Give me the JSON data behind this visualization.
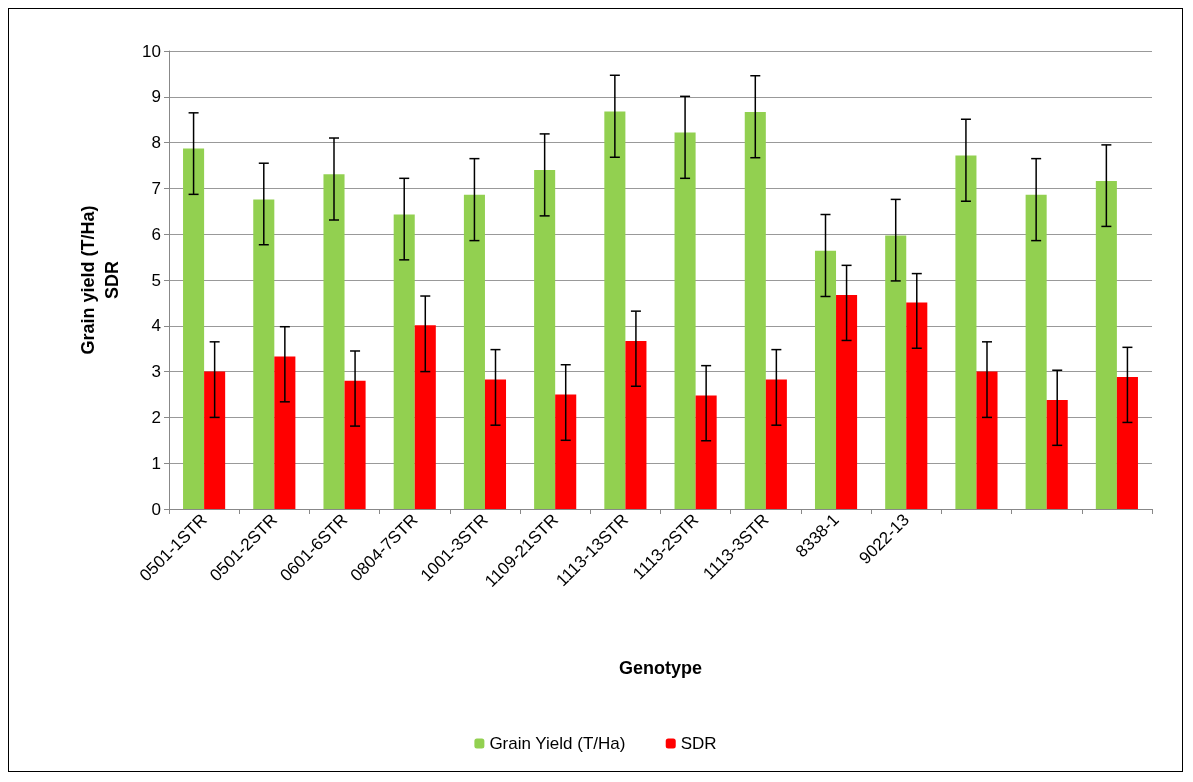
{
  "chart_data": {
    "type": "bar",
    "xlabel": "Genotype",
    "ylabel": "Grain yield (T/Ha)\nSDR",
    "categories": [
      "0501-1STR",
      "0501-2STR",
      "0601-6STR",
      "0804-7STR",
      "1001-3STR",
      "1109-21STR",
      "1113-13STR",
      "1113-2STR",
      "1113-3STR",
      "8338-1",
      "9022-13",
      null,
      null,
      null
    ],
    "series": [
      {
        "name": "Grain Yield (T/Ha)",
        "color": "#92d050",
        "values": [
          7.87,
          6.76,
          7.31,
          6.43,
          6.86,
          7.4,
          8.68,
          8.22,
          8.67,
          5.64,
          5.97,
          7.72,
          6.86,
          7.16
        ],
        "errors": [
          [
            6.87,
            8.65
          ],
          [
            5.77,
            7.55
          ],
          [
            6.31,
            8.1
          ],
          [
            5.44,
            7.22
          ],
          [
            5.86,
            7.65
          ],
          [
            6.4,
            8.19
          ],
          [
            7.68,
            9.47
          ],
          [
            7.22,
            9.01
          ],
          [
            7.67,
            9.46
          ],
          [
            4.64,
            6.43
          ],
          [
            4.98,
            6.76
          ],
          [
            6.72,
            8.51
          ],
          [
            5.86,
            7.65
          ],
          [
            6.17,
            7.95
          ]
        ]
      },
      {
        "name": "SDR",
        "color": "#ff0000",
        "values": [
          3.0,
          3.33,
          2.8,
          4.01,
          2.83,
          2.5,
          3.67,
          2.48,
          2.83,
          4.67,
          4.51,
          3.0,
          2.38,
          2.88
        ],
        "errors": [
          [
            2.0,
            3.65
          ],
          [
            2.34,
            3.98
          ],
          [
            1.81,
            3.45
          ],
          [
            3.0,
            4.65
          ],
          [
            1.83,
            3.48
          ],
          [
            1.5,
            3.15
          ],
          [
            2.68,
            4.32
          ],
          [
            1.49,
            3.13
          ],
          [
            1.83,
            3.48
          ],
          [
            3.68,
            5.32
          ],
          [
            3.51,
            5.14
          ],
          [
            2.0,
            3.65
          ],
          [
            1.39,
            3.03
          ],
          [
            1.89,
            3.53
          ]
        ]
      }
    ],
    "ylim": [
      0,
      10
    ],
    "yticks": [
      0,
      1,
      2,
      3,
      4,
      5,
      6,
      7,
      8,
      9,
      10
    ],
    "grid": "y",
    "legend": "bottom"
  }
}
